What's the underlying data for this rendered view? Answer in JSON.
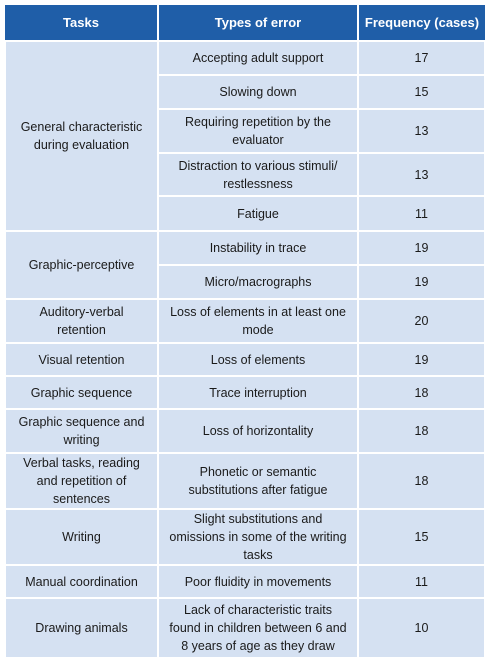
{
  "table": {
    "headers": [
      "Tasks",
      "Types of error",
      "Frequency (cases)"
    ],
    "groups": [
      {
        "task": "General characteristic during evaluation",
        "errors": [
          {
            "type": "Accepting adult support",
            "frequency": "17"
          },
          {
            "type": "Slowing down",
            "frequency": "15"
          },
          {
            "type": "Requiring repetition by the evaluator",
            "frequency": "13"
          },
          {
            "type": "Distraction to various stimuli/ restlessness",
            "frequency": "13"
          },
          {
            "type": "Fatigue",
            "frequency": "11"
          }
        ]
      },
      {
        "task": "Graphic-perceptive",
        "errors": [
          {
            "type": "Instability in trace",
            "frequency": "19"
          },
          {
            "type": "Micro/macrographs",
            "frequency": "19"
          }
        ]
      },
      {
        "task": "Auditory-verbal retention",
        "errors": [
          {
            "type": "Loss of elements in at least one mode",
            "frequency": "20"
          }
        ]
      },
      {
        "task": "Visual retention",
        "errors": [
          {
            "type": "Loss of elements",
            "frequency": "19"
          }
        ]
      },
      {
        "task": "Graphic sequence",
        "errors": [
          {
            "type": "Trace interruption",
            "frequency": "18"
          }
        ]
      },
      {
        "task": "Graphic sequence and writing",
        "errors": [
          {
            "type": "Loss of horizontality",
            "frequency": "18"
          }
        ]
      },
      {
        "task": "Verbal tasks, reading and repetition of sentences",
        "errors": [
          {
            "type": "Phonetic or semantic substitutions after fatigue",
            "frequency": "18"
          }
        ]
      },
      {
        "task": "Writing",
        "errors": [
          {
            "type": "Slight substitutions and omissions in some of the writing tasks",
            "frequency": "15"
          }
        ]
      },
      {
        "task": "Manual coordination",
        "errors": [
          {
            "type": "Poor fluidity in movements",
            "frequency": "11"
          }
        ]
      },
      {
        "task": "Drawing animals",
        "errors": [
          {
            "type": "Lack of characteristic traits found in children between 6 and 8 years of age as they draw",
            "frequency": "10"
          }
        ]
      }
    ]
  }
}
